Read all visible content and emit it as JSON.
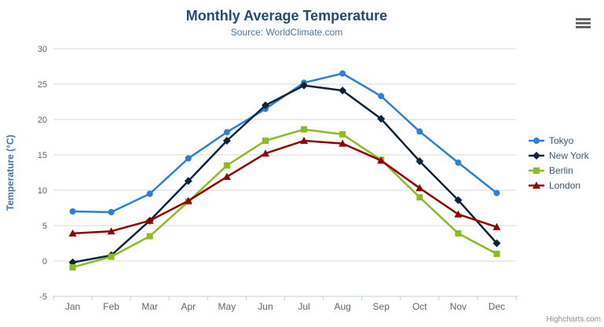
{
  "credits": "Highcharts.com",
  "chart_data": {
    "type": "line",
    "title": "Monthly Average Temperature",
    "subtitle": "Source: WorldClimate.com",
    "categories": [
      "Jan",
      "Feb",
      "Mar",
      "Apr",
      "May",
      "Jun",
      "Jul",
      "Aug",
      "Sep",
      "Oct",
      "Nov",
      "Dec"
    ],
    "xlabel": "",
    "ylabel": "Temperature (°C)",
    "ylim": [
      -5,
      30
    ],
    "ytick_interval": 5,
    "grid": true,
    "legend_position": "right",
    "colors": {
      "grid_line": "#d8d8d8",
      "axis_line": "#c0d0e0",
      "tick_label": "#666666",
      "title": "#274b6d",
      "subtitle": "#4d759e",
      "yaxis_title": "#4572a7",
      "legend_text": "#3e576f",
      "credits_text": "#909090"
    },
    "series": [
      {
        "name": "Tokyo",
        "color": "#2f7ed8",
        "marker": "circle",
        "values": [
          7.0,
          6.9,
          9.5,
          14.5,
          18.2,
          21.5,
          25.2,
          26.5,
          23.3,
          18.3,
          13.9,
          9.6
        ]
      },
      {
        "name": "New York",
        "color": "#0d233a",
        "marker": "diamond",
        "values": [
          -0.2,
          0.8,
          5.7,
          11.3,
          17.0,
          22.0,
          24.8,
          24.1,
          20.1,
          14.1,
          8.6,
          2.5
        ]
      },
      {
        "name": "Berlin",
        "color": "#8bbc21",
        "marker": "square",
        "values": [
          -0.9,
          0.6,
          3.5,
          8.4,
          13.5,
          17.0,
          18.6,
          17.9,
          14.3,
          9.0,
          3.9,
          1.0
        ]
      },
      {
        "name": "London",
        "color": "#910000",
        "marker": "triangle",
        "values": [
          3.9,
          4.2,
          5.7,
          8.5,
          11.9,
          15.2,
          17.0,
          16.6,
          14.2,
          10.3,
          6.6,
          4.8
        ]
      }
    ]
  }
}
